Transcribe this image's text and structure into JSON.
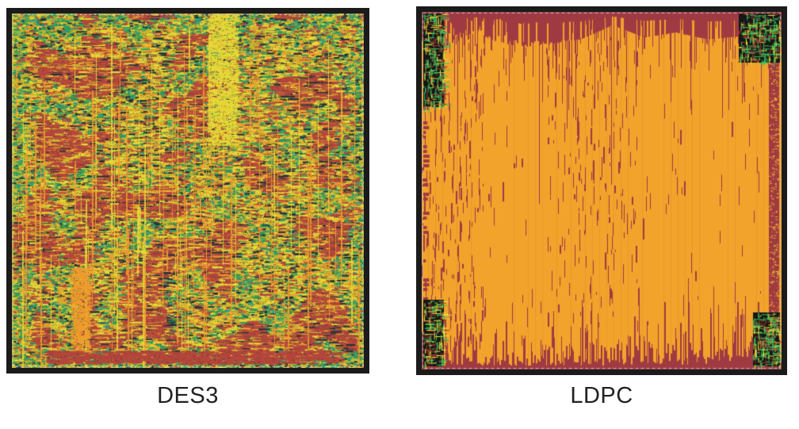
{
  "figure": {
    "caption_color": "#232021",
    "panels": [
      {
        "id": "des3",
        "label": "DES3",
        "palette": {
          "frame": "#1b1b1b",
          "inner_line": "#cfcfcf",
          "base": "#c6b52f",
          "red": "#b5463c",
          "orange": "#ee9d2e",
          "yellow": "#e8d838",
          "green": "#2f9e5e",
          "teal": "#2a9d85",
          "dark": "#23313a"
        }
      },
      {
        "id": "ldpc",
        "label": "LDPC",
        "palette": {
          "frame": "#1b1b1b",
          "inner_line": "#b8b8b8",
          "base": "#f2a32c",
          "maroon": "#a03a42",
          "red": "#ab3b33",
          "green": "#3cc45e",
          "yellow": "#e8e23a",
          "black": "#161616"
        }
      }
    ]
  }
}
